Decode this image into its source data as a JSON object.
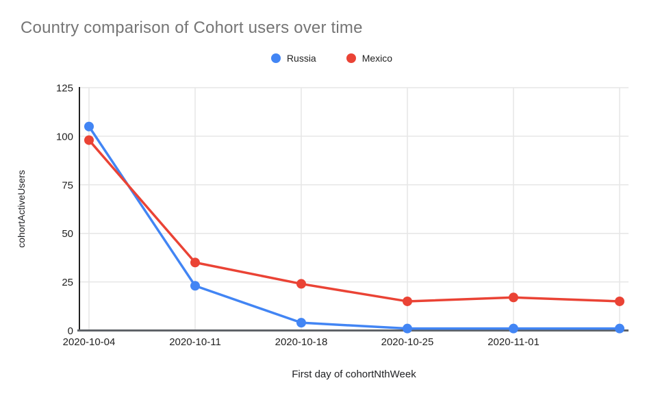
{
  "page": {
    "background": "#ffffff"
  },
  "chart_data": {
    "type": "line",
    "title": "Country comparison of Cohort users over time",
    "xlabel": "First day of cohortNthWeek",
    "ylabel": "cohortActiveUsers",
    "x_tick_labels": [
      "2020-10-04",
      "2020-10-11",
      "2020-10-18",
      "2020-10-25",
      "2020-11-01",
      ""
    ],
    "y_ticks": [
      0,
      25,
      50,
      75,
      100,
      125
    ],
    "ylim": [
      0,
      125
    ],
    "grid": true,
    "legend_position": "top-center",
    "series": [
      {
        "name": "Russia",
        "color": "#4285F4",
        "values": [
          105,
          23,
          4,
          1,
          1,
          1
        ]
      },
      {
        "name": "Mexico",
        "color": "#EA4335",
        "values": [
          98,
          35,
          24,
          15,
          17,
          15
        ]
      }
    ],
    "colors": {
      "title": "#757575",
      "gridline": "#e6e6e6",
      "y_axis_line": "#212121",
      "x_axis_line": "#5f6368",
      "tick_label": "#1f1f1f",
      "legend_label": "#212121"
    }
  }
}
